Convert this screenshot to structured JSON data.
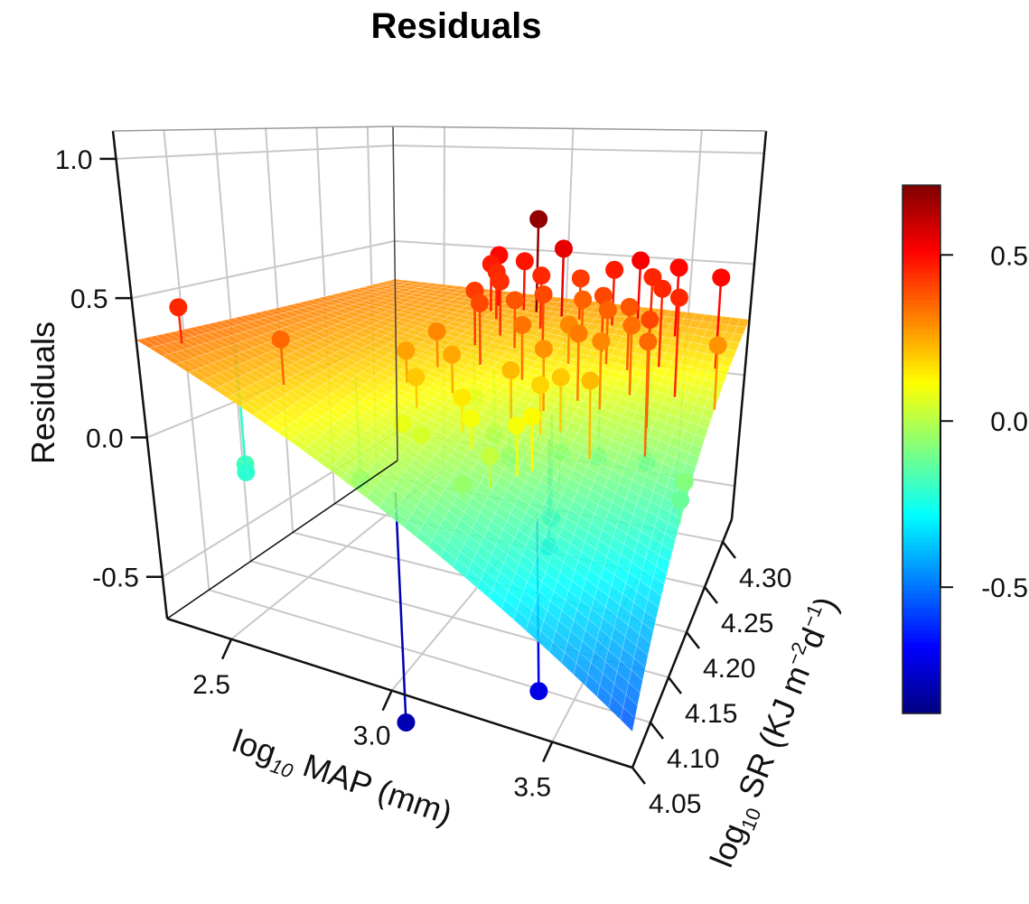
{
  "chart_data": {
    "type": "scatter3d",
    "title": "Residuals",
    "xlabel": {
      "base": "log",
      "sub": "10",
      "rest": " MAP (mm)"
    },
    "ylabel": {
      "base": "log",
      "sub": "10",
      "rest": " SR (KJ m",
      "sup1": "−2",
      "mid": "d",
      "sup2": "−1",
      "end": ")"
    },
    "zlabel": "Residuals",
    "xlim": [
      2.3,
      3.75
    ],
    "ylim": [
      4.05,
      4.325
    ],
    "zlim": [
      -0.65,
      1.1
    ],
    "xticks": [
      "2.5",
      "3.0",
      "3.5"
    ],
    "yticks": [
      "4.05",
      "4.10",
      "4.15",
      "4.20",
      "4.25",
      "4.30"
    ],
    "zticks": [
      "-0.5",
      "0.0",
      "0.5",
      "1.0"
    ],
    "grid": true,
    "colorscale": "jet",
    "colorbar": {
      "range": [
        -0.88,
        0.71
      ],
      "ticks": [
        "-0.5",
        "0.0",
        "0.5"
      ],
      "placement": "right"
    },
    "surface": {
      "type": "fitted plane",
      "corners": {
        "xmin_ymin": 0.35,
        "xmin_ymax": 0.3,
        "xmax_ymax": 0.25,
        "xmax_ymin": -0.55
      }
    },
    "points": [
      [
        2.95,
        4.3,
        0.68
      ],
      [
        3.05,
        4.3,
        0.55
      ],
      [
        3.35,
        4.3,
        0.52
      ],
      [
        3.5,
        4.3,
        0.5
      ],
      [
        3.7,
        4.28,
        0.5
      ],
      [
        3.6,
        4.25,
        0.45
      ],
      [
        3.5,
        4.27,
        0.45
      ],
      [
        3.4,
        4.3,
        0.45
      ],
      [
        3.55,
        4.22,
        0.4
      ],
      [
        3.58,
        4.2,
        0.35
      ],
      [
        3.75,
        4.25,
        0.28
      ],
      [
        2.35,
        4.08,
        0.45
      ],
      [
        2.6,
        4.1,
        0.35
      ],
      [
        2.4,
        4.12,
        -0.18
      ],
      [
        2.4,
        4.12,
        -0.21
      ],
      [
        3.75,
        4.18,
        -0.08
      ],
      [
        3.75,
        4.17,
        -0.12
      ],
      [
        3.0,
        4.07,
        -0.8
      ],
      [
        3.35,
        4.12,
        -0.72
      ],
      [
        2.8,
        4.3,
        0.5
      ],
      [
        2.8,
        4.29,
        0.47
      ],
      [
        2.85,
        4.28,
        0.45
      ],
      [
        2.9,
        4.3,
        0.48
      ],
      [
        2.92,
        4.26,
        0.44
      ],
      [
        2.88,
        4.24,
        0.42
      ],
      [
        2.95,
        4.22,
        0.4
      ],
      [
        3.0,
        4.25,
        0.38
      ],
      [
        3.02,
        4.28,
        0.45
      ],
      [
        3.08,
        4.26,
        0.4
      ],
      [
        3.1,
        4.22,
        0.33
      ],
      [
        3.12,
        4.3,
        0.42
      ],
      [
        3.18,
        4.28,
        0.36
      ],
      [
        3.2,
        4.25,
        0.3
      ],
      [
        3.25,
        4.3,
        0.47
      ],
      [
        3.28,
        4.27,
        0.4
      ],
      [
        3.3,
        4.22,
        0.32
      ],
      [
        3.32,
        4.26,
        0.36
      ],
      [
        3.22,
        4.2,
        0.28
      ],
      [
        3.15,
        4.18,
        0.22
      ],
      [
        2.85,
        4.2,
        0.3
      ],
      [
        2.82,
        4.17,
        0.26
      ],
      [
        2.9,
        4.15,
        0.2
      ],
      [
        2.95,
        4.18,
        0.25
      ],
      [
        3.05,
        4.15,
        0.15
      ],
      [
        3.1,
        4.14,
        0.1
      ],
      [
        3.25,
        4.18,
        0.18
      ],
      [
        3.28,
        4.15,
        0.12
      ],
      [
        3.3,
        4.19,
        0.2
      ],
      [
        3.38,
        4.22,
        0.3
      ],
      [
        3.4,
        4.26,
        0.38
      ],
      [
        3.42,
        4.18,
        0.22
      ],
      [
        3.45,
        4.24,
        0.34
      ],
      [
        2.98,
        4.12,
        0.05
      ],
      [
        3.2,
        4.12,
        0.02
      ],
      [
        3.15,
        4.1,
        -0.05
      ],
      [
        2.92,
        4.12,
        0.08
      ],
      [
        3.25,
        4.14,
        0.1
      ],
      [
        2.7,
        4.15,
        -0.22
      ],
      [
        3.1,
        4.2,
        -0.15
      ],
      [
        3.2,
        4.24,
        -0.2
      ],
      [
        3.3,
        4.26,
        -0.25
      ],
      [
        3.45,
        4.28,
        -0.3
      ],
      [
        3.25,
        4.2,
        -0.35
      ],
      [
        3.28,
        4.18,
        -0.4
      ],
      [
        3.0,
        4.22,
        -0.12
      ],
      [
        2.85,
        4.25,
        -0.05
      ]
    ]
  }
}
